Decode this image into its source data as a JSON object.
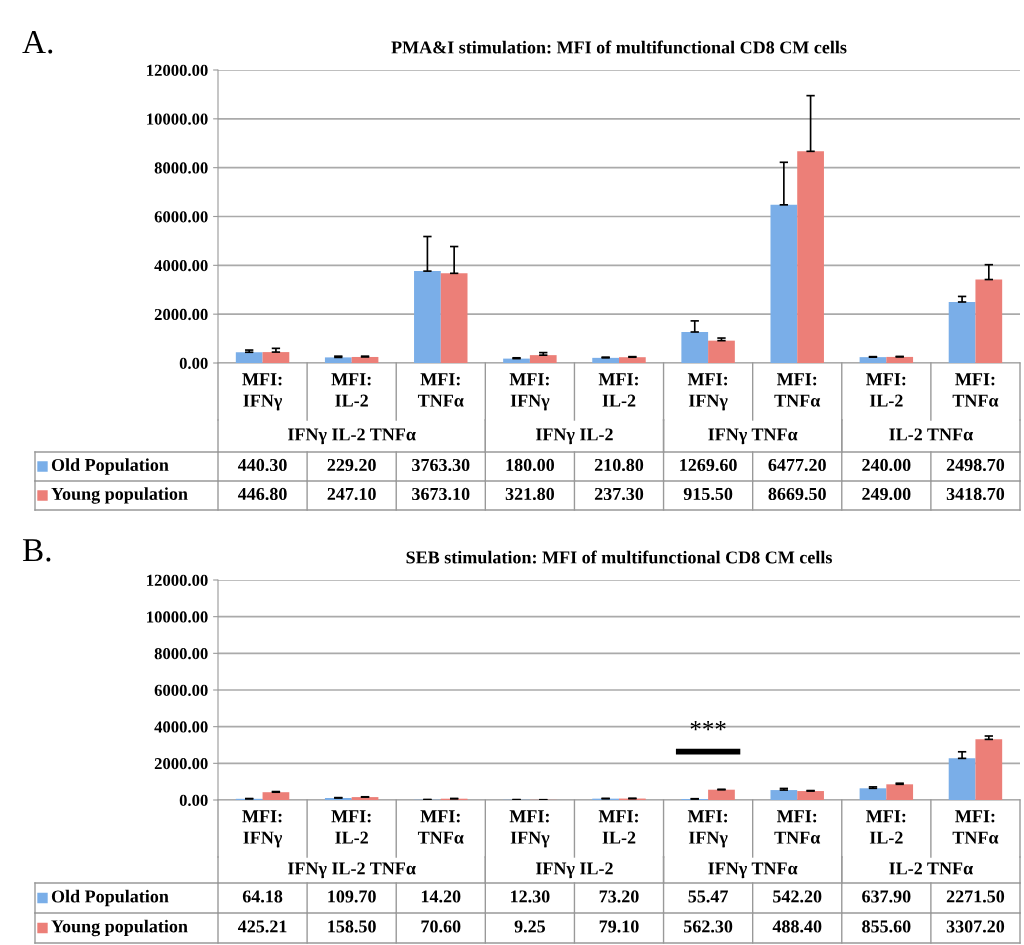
{
  "chart_data": [
    {
      "type": "bar",
      "title": "PMA&I stimulation: MFI of multifunctional CD8 CM cells",
      "categories": [
        "MFI:\nIFNγ",
        "MFI:\nIL-2",
        "MFI:\nTNFα",
        "MFI:\nIFNγ",
        "MFI:\nIL-2",
        "MFI:\nIFNγ",
        "MFI:\nTNFα",
        "MFI:\nIL-2",
        "MFI:\nTNFα"
      ],
      "series": [
        {
          "name": "Old Population",
          "color": "#7aaee8",
          "values": [
            440.3,
            229.2,
            3763.3,
            180.0,
            210.8,
            1269.6,
            6477.2,
            240.0,
            2498.7
          ],
          "value_labels": [
            "440.30",
            "229.20",
            "3763.30",
            "180.00",
            "210.80",
            "1269.60",
            "6477.20",
            "240.00",
            "2498.70"
          ],
          "errors": [
            [
              440.3,
              530
            ],
            [
              229.2,
              280
            ],
            [
              3763.3,
              5180
            ],
            [
              180.0,
              213
            ],
            [
              210.8,
              240
            ],
            [
              1269.6,
              1725
            ],
            [
              6477.2,
              8220
            ],
            [
              240.0,
              260
            ],
            [
              2498.7,
              2726
            ]
          ]
        },
        {
          "name": "Young population",
          "color": "#ec7f78",
          "values": [
            446.8,
            247.1,
            3673.1,
            321.8,
            237.3,
            915.5,
            8669.5,
            249.0,
            3418.7
          ],
          "value_labels": [
            "446.80",
            "247.10",
            "3673.10",
            "321.80",
            "237.30",
            "915.50",
            "8669.50",
            "249.00",
            "3418.70"
          ],
          "errors": [
            [
              446.8,
              600
            ],
            [
              247.1,
              280
            ],
            [
              3673.1,
              4770
            ],
            [
              321.8,
              426
            ],
            [
              237.3,
              260
            ],
            [
              915.5,
              1022
            ],
            [
              8669.5,
              10950
            ],
            [
              249.0,
              270
            ],
            [
              3418.7,
              4026
            ]
          ]
        }
      ],
      "ylim": [
        0,
        12000
      ],
      "yticks": [
        {
          "value": 0,
          "label": "0.00"
        },
        {
          "value": 2000,
          "label": "2000.00"
        },
        {
          "value": 4000,
          "label": "4000.00"
        },
        {
          "value": 6000,
          "label": "6000.00"
        },
        {
          "value": 8000,
          "label": "8000.00"
        },
        {
          "value": 10000,
          "label": "10000.00"
        },
        {
          "value": 12000,
          "label": "12000.00"
        }
      ],
      "grid": "y",
      "annotations": [
        "A.",
        "IFNγ IL-2 TNFα",
        "IFNγ IL-2",
        "IFNγ TNFα",
        "IL-2 TNFα"
      ],
      "legend": "bottom left"
    },
    {
      "type": "bar",
      "title": "SEB stimulation: MFI of multifunctional CD8 CM cells",
      "categories": [
        "MFI:\nIFNγ",
        "MFI:\nIL-2",
        "MFI:\nTNFα",
        "MFI:\nIFNγ",
        "MFI:\nIL-2",
        "MFI:\nIFNγ",
        "MFI:\nTNFα",
        "MFI:\nIL-2",
        "MFI:\nTNFα"
      ],
      "series": [
        {
          "name": "Old Population",
          "color": "#7aaee8",
          "values": [
            64.18,
            109.7,
            14.2,
            12.3,
            73.2,
            55.47,
            542.2,
            637.9,
            2271.5
          ],
          "value_labels": [
            "64.18",
            "109.70",
            "14.20",
            "12.30",
            "73.20",
            "55.47",
            "542.20",
            "637.90",
            "2271.50"
          ],
          "errors": [
            [
              64.18,
              80
            ],
            [
              109.7,
              130
            ],
            [
              14.2,
              25
            ],
            [
              12.3,
              20
            ],
            [
              73.2,
              85
            ],
            [
              55.47,
              70
            ],
            [
              542.2,
              630
            ],
            [
              637.9,
              715
            ],
            [
              2271.5,
              2630
            ]
          ]
        },
        {
          "name": "Young population",
          "color": "#ec7f78",
          "values": [
            425.21,
            158.5,
            70.6,
            9.25,
            79.1,
            562.3,
            488.4,
            855.6,
            3307.2
          ],
          "value_labels": [
            "425.21",
            "158.50",
            "70.60",
            "9.25",
            "79.10",
            "562.30",
            "488.40",
            "855.60",
            "3307.20"
          ],
          "errors": [
            [
              425.21,
              460
            ],
            [
              158.5,
              175
            ],
            [
              70.6,
              80
            ],
            [
              9.25,
              15
            ],
            [
              79.1,
              90
            ],
            [
              562.3,
              580
            ],
            [
              488.4,
              515
            ],
            [
              855.6,
              915
            ],
            [
              3307.2,
              3490
            ]
          ]
        }
      ],
      "ylim": [
        0,
        12000
      ],
      "yticks": [
        {
          "value": 0,
          "label": "0.00"
        },
        {
          "value": 2000,
          "label": "2000.00"
        },
        {
          "value": 4000,
          "label": "4000.00"
        },
        {
          "value": 6000,
          "label": "6000.00"
        },
        {
          "value": 8000,
          "label": "8000.00"
        },
        {
          "value": 10000,
          "label": "10000.00"
        },
        {
          "value": 12000,
          "label": "12000.00"
        }
      ],
      "grid": "y",
      "annotations": [
        "B.",
        "IFNγ IL-2 TNFα",
        "IFNγ IL-2",
        "IFNγ TNFα",
        "IL-2 TNFα",
        "***"
      ],
      "legend": "bottom left"
    }
  ]
}
